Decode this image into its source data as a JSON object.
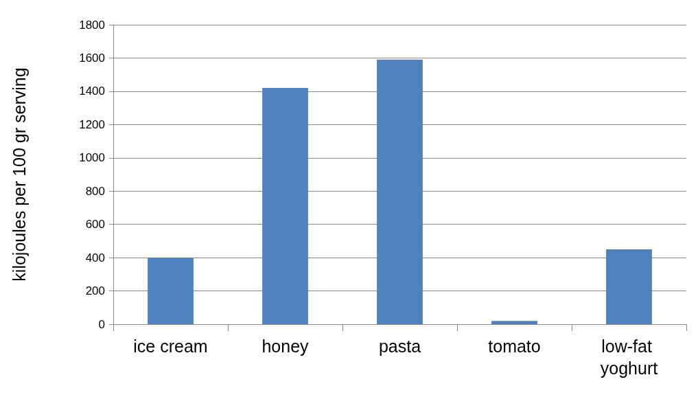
{
  "chart_data": {
    "type": "bar",
    "ylabel": "kilojoules per 100 gr serving",
    "categories": [
      "ice cream",
      "honey",
      "pasta",
      "tomato",
      "low-fat yoghurt"
    ],
    "values": [
      400,
      1420,
      1590,
      20,
      450
    ],
    "color": "#4f81bd",
    "ylim": [
      0,
      1800
    ],
    "yticks": [
      0,
      200,
      400,
      600,
      800,
      1000,
      1200,
      1400,
      1600,
      1800
    ],
    "grid": "y"
  }
}
